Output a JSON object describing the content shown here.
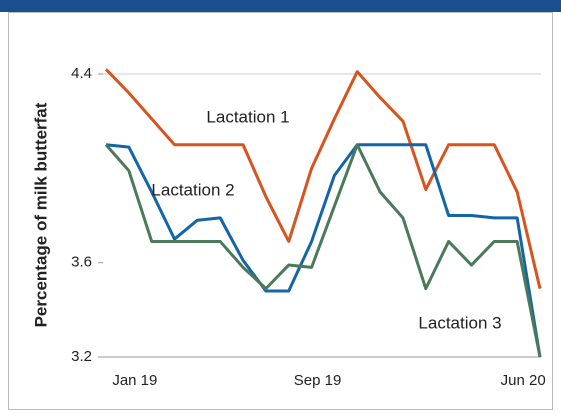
{
  "chart_data": {
    "type": "line",
    "y_label": "Percentage of milk butterfat",
    "categories": [
      null,
      "Jan 19",
      null,
      null,
      null,
      null,
      null,
      null,
      null,
      "Sep 19",
      null,
      null,
      null,
      null,
      null,
      null,
      null,
      null,
      "Jun 20",
      null
    ],
    "series": [
      {
        "name": "Lactation 1",
        "color": "#d9531e",
        "values": [
          4.42,
          4.32,
          4.21,
          4.1,
          4.1,
          4.1,
          4.1,
          3.88,
          3.69,
          4.0,
          4.21,
          4.41,
          4.3,
          4.2,
          3.91,
          4.1,
          4.1,
          4.1,
          3.9,
          3.49
        ]
      },
      {
        "name": "Lactation 2",
        "color": "#1464a8",
        "values": [
          4.1,
          4.09,
          3.9,
          3.7,
          3.78,
          3.79,
          3.61,
          3.48,
          3.48,
          3.69,
          3.97,
          4.1,
          4.1,
          4.1,
          4.1,
          3.8,
          3.8,
          3.79,
          3.79,
          3.2
        ]
      },
      {
        "name": "Lactation 3",
        "color": "#4a7a5a",
        "values": [
          4.1,
          3.99,
          3.69,
          3.69,
          3.69,
          3.69,
          3.58,
          3.49,
          3.59,
          3.58,
          3.84,
          4.1,
          3.9,
          3.79,
          3.49,
          3.69,
          3.59,
          3.69,
          3.69,
          3.2
        ]
      }
    ],
    "ylim": [
      3.2,
      4.4
    ],
    "yticks": [
      3.2,
      3.6,
      4.4
    ],
    "grid": false
  }
}
